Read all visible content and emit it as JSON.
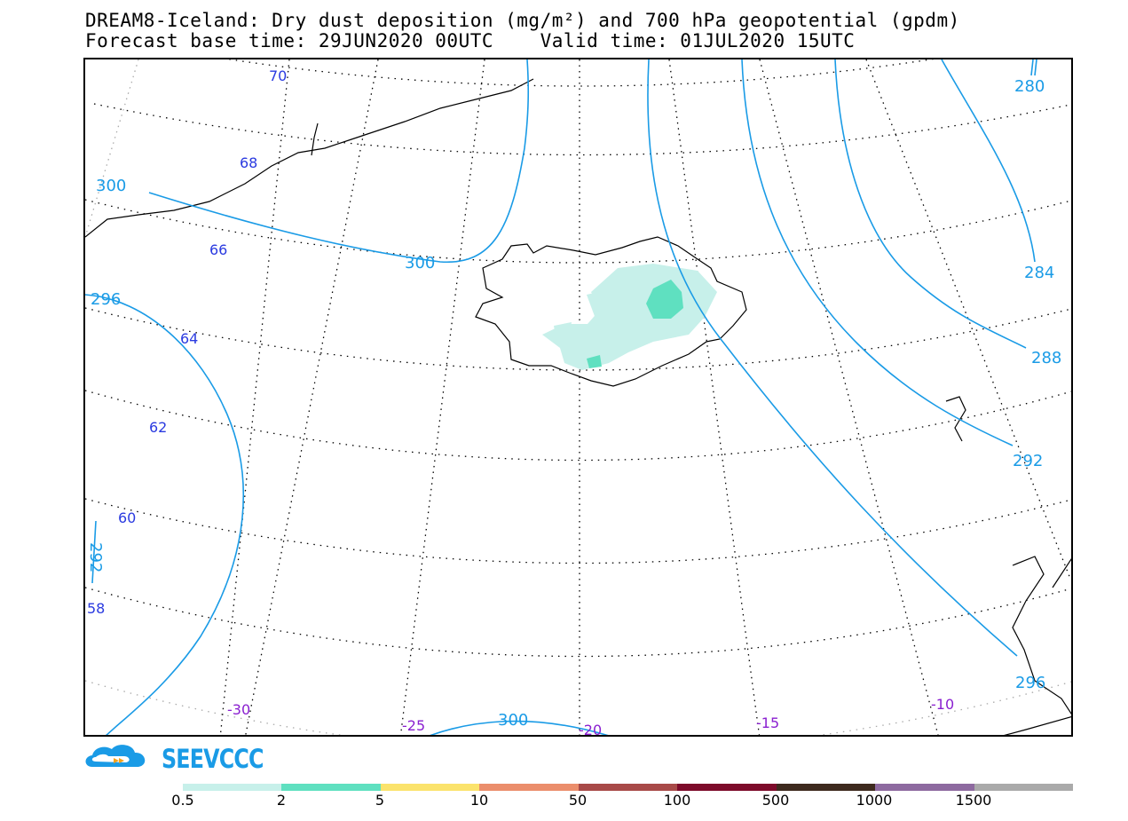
{
  "title": {
    "line1": "DREAM8-Iceland: Dry dust deposition (mg/m²) and 700 hPa geopotential (gpdm)",
    "line2": "Forecast base time: 29JUN2020 00UTC    Valid time: 01JUL2020 15UTC"
  },
  "map": {
    "region": "Iceland",
    "latitude_labels": [
      "70",
      "68",
      "66",
      "64",
      "62",
      "60",
      "58"
    ],
    "longitude_labels": [
      "-30",
      "-25",
      "-20",
      "-15",
      "-10"
    ],
    "contour_labels": [
      "300",
      "300",
      "300",
      "296",
      "292",
      "296",
      "292",
      "288",
      "284",
      "280"
    ],
    "contour_color": "#1a9be6",
    "dust_colors": {
      "low": "#c7f0ea",
      "mid": "#5fe0c0"
    }
  },
  "logo": {
    "text": "SEEVCCC"
  },
  "colorbar": {
    "colors": [
      "#c7f0ea",
      "#5fe0c0",
      "#fbe36c",
      "#eb8e6c",
      "#a84a48",
      "#7d0a2a",
      "#3e2a1e",
      "#8e6aa0",
      "#aaaaaa"
    ],
    "ticks": [
      "0.5",
      "2",
      "5",
      "10",
      "50",
      "100",
      "500",
      "1000",
      "1500"
    ]
  }
}
